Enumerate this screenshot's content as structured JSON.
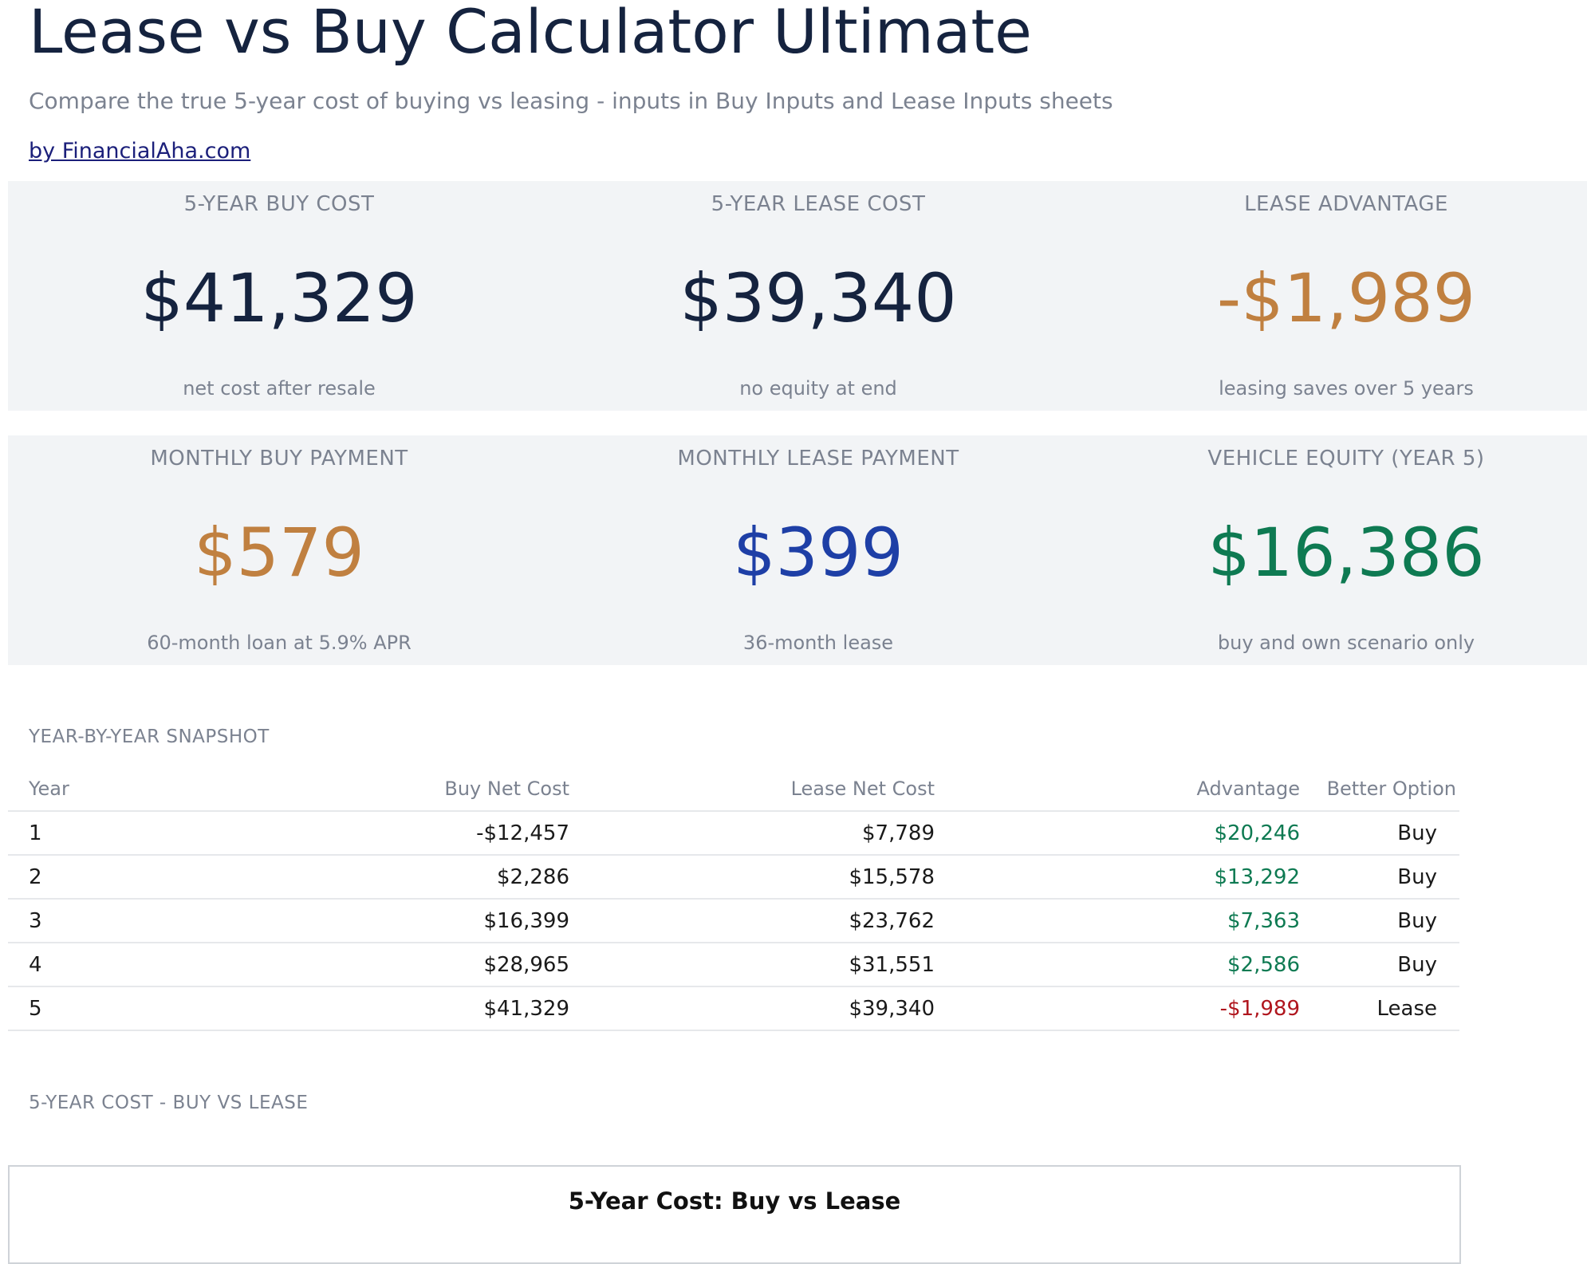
{
  "header": {
    "title": "Lease vs Buy Calculator Ultimate",
    "subtitle": "Compare the true 5-year cost of buying vs leasing - inputs in Buy Inputs and Lease Inputs sheets",
    "byline": "by FinancialAha.com"
  },
  "kpis_row1": [
    {
      "label": "5-YEAR BUY COST",
      "value": "$41,329",
      "note": "net cost after resale",
      "color": "#15233f"
    },
    {
      "label": "5-YEAR LEASE COST",
      "value": "$39,340",
      "note": "no equity at end",
      "color": "#15233f"
    },
    {
      "label": "LEASE ADVANTAGE",
      "value": "-$1,989",
      "note": "leasing saves over 5 years",
      "color": "#c08040"
    }
  ],
  "kpis_row2": [
    {
      "label": "MONTHLY BUY PAYMENT",
      "value": "$579",
      "note": "60-month loan at 5.9% APR",
      "color": "#c08040"
    },
    {
      "label": "MONTHLY LEASE PAYMENT",
      "value": "$399",
      "note": "36-month lease",
      "color": "#1e3fa6"
    },
    {
      "label": "VEHICLE EQUITY (YEAR 5)",
      "value": "$16,386",
      "note": "buy and own scenario only",
      "color": "#0e7a52"
    }
  ],
  "snapshot": {
    "section_label": "YEAR-BY-YEAR SNAPSHOT",
    "columns": [
      "Year",
      "Buy Net Cost",
      "Lease Net Cost",
      "Advantage",
      "Better Option"
    ],
    "rows": [
      {
        "year": "1",
        "buy": "-$12,457",
        "lease": "$7,789",
        "advantage": "$20,246",
        "better": "Buy"
      },
      {
        "year": "2",
        "buy": "$2,286",
        "lease": "$15,578",
        "advantage": "$13,292",
        "better": "Buy"
      },
      {
        "year": "3",
        "buy": "$16,399",
        "lease": "$23,762",
        "advantage": "$7,363",
        "better": "Buy"
      },
      {
        "year": "4",
        "buy": "$28,965",
        "lease": "$31,551",
        "advantage": "$2,586",
        "better": "Buy"
      },
      {
        "year": "5",
        "buy": "$41,329",
        "lease": "$39,340",
        "advantage": "-$1,989",
        "better": "Lease"
      }
    ]
  },
  "chart_section": {
    "section_label": "5-YEAR COST - BUY VS LEASE",
    "chart_title": "5-Year Cost: Buy vs Lease"
  },
  "colors": {
    "positive": "#0e7a52",
    "negative": "#b0161e",
    "panel_bg": "#f2f4f6",
    "muted_text": "#7b8290"
  }
}
